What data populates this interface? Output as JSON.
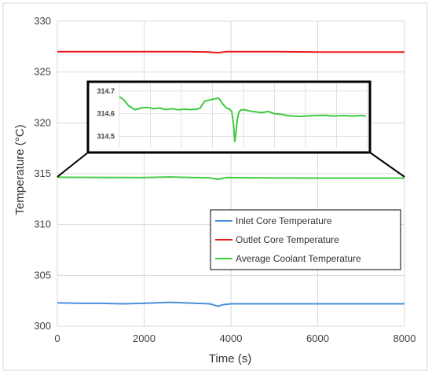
{
  "chart_data": {
    "type": "line",
    "xlabel": "Time (s)",
    "ylabel": "Temperature (°C)",
    "xlim": [
      0,
      8000
    ],
    "ylim": [
      300,
      330
    ],
    "x_ticks": [
      "0",
      "2000",
      "4000",
      "6000",
      "8000"
    ],
    "y_ticks": [
      "300",
      "305",
      "310",
      "315",
      "320",
      "325",
      "330"
    ],
    "grid": true,
    "legend_position": "center-right",
    "series": [
      {
        "name": "Inlet Core Temperature",
        "color": "#4a90d9",
        "x": [
          0,
          500,
          1000,
          1500,
          2000,
          2300,
          2600,
          2900,
          3200,
          3500,
          3600,
          3700,
          3800,
          4000,
          4500,
          5000,
          5500,
          6000,
          6500,
          7000,
          7500,
          8000
        ],
        "y": [
          302.3,
          302.25,
          302.25,
          302.2,
          302.25,
          302.3,
          302.35,
          302.3,
          302.25,
          302.2,
          302.1,
          301.95,
          302.1,
          302.2,
          302.2,
          302.2,
          302.2,
          302.2,
          302.2,
          302.2,
          302.2,
          302.2
        ]
      },
      {
        "name": "Outlet Core Temperature",
        "color": "#ee1c1c",
        "x": [
          0,
          1000,
          2000,
          3000,
          3500,
          3700,
          3900,
          4500,
          5000,
          6000,
          7000,
          8000
        ],
        "y": [
          327.0,
          327.0,
          327.0,
          327.0,
          326.97,
          326.9,
          327.0,
          327.0,
          327.0,
          326.97,
          326.97,
          326.97
        ]
      },
      {
        "name": "Average Coolant Temperature",
        "color": "#3fca3f",
        "x": [
          0,
          1000,
          2000,
          2600,
          3000,
          3500,
          3700,
          3900,
          4500,
          5000,
          6000,
          7000,
          8000
        ],
        "y": [
          314.65,
          314.63,
          314.62,
          314.68,
          314.63,
          314.6,
          314.45,
          314.62,
          314.6,
          314.58,
          314.57,
          314.57,
          314.57
        ]
      }
    ],
    "inset": {
      "y_ticks": [
        "314.5",
        "314.6",
        "314.7"
      ],
      "ylim": [
        314.45,
        314.72
      ],
      "xlim": [
        0,
        8000
      ],
      "series_name": "Average Coolant Temperature",
      "x": [
        0,
        150,
        300,
        500,
        700,
        900,
        1100,
        1300,
        1500,
        1700,
        1900,
        2100,
        2300,
        2500,
        2600,
        2750,
        2900,
        3050,
        3200,
        3350,
        3450,
        3550,
        3620,
        3680,
        3720,
        3760,
        3800,
        3850,
        3900,
        4000,
        4200,
        4400,
        4600,
        4800,
        5000,
        5200,
        5400,
        5600,
        5800,
        6000,
        6300,
        6600,
        6900,
        7200,
        7500,
        7800,
        7950
      ],
      "y": [
        314.675,
        314.66,
        314.635,
        314.618,
        314.625,
        314.628,
        314.622,
        314.625,
        314.618,
        314.622,
        314.617,
        314.62,
        314.618,
        314.62,
        314.625,
        314.655,
        314.66,
        314.665,
        314.668,
        314.64,
        314.625,
        314.62,
        314.61,
        314.55,
        314.475,
        314.52,
        314.575,
        314.605,
        314.615,
        314.618,
        314.612,
        314.608,
        314.605,
        314.61,
        314.6,
        314.598,
        314.592,
        314.59,
        314.588,
        314.59,
        314.592,
        314.593,
        314.59,
        314.592,
        314.59,
        314.592,
        314.59
      ]
    }
  }
}
